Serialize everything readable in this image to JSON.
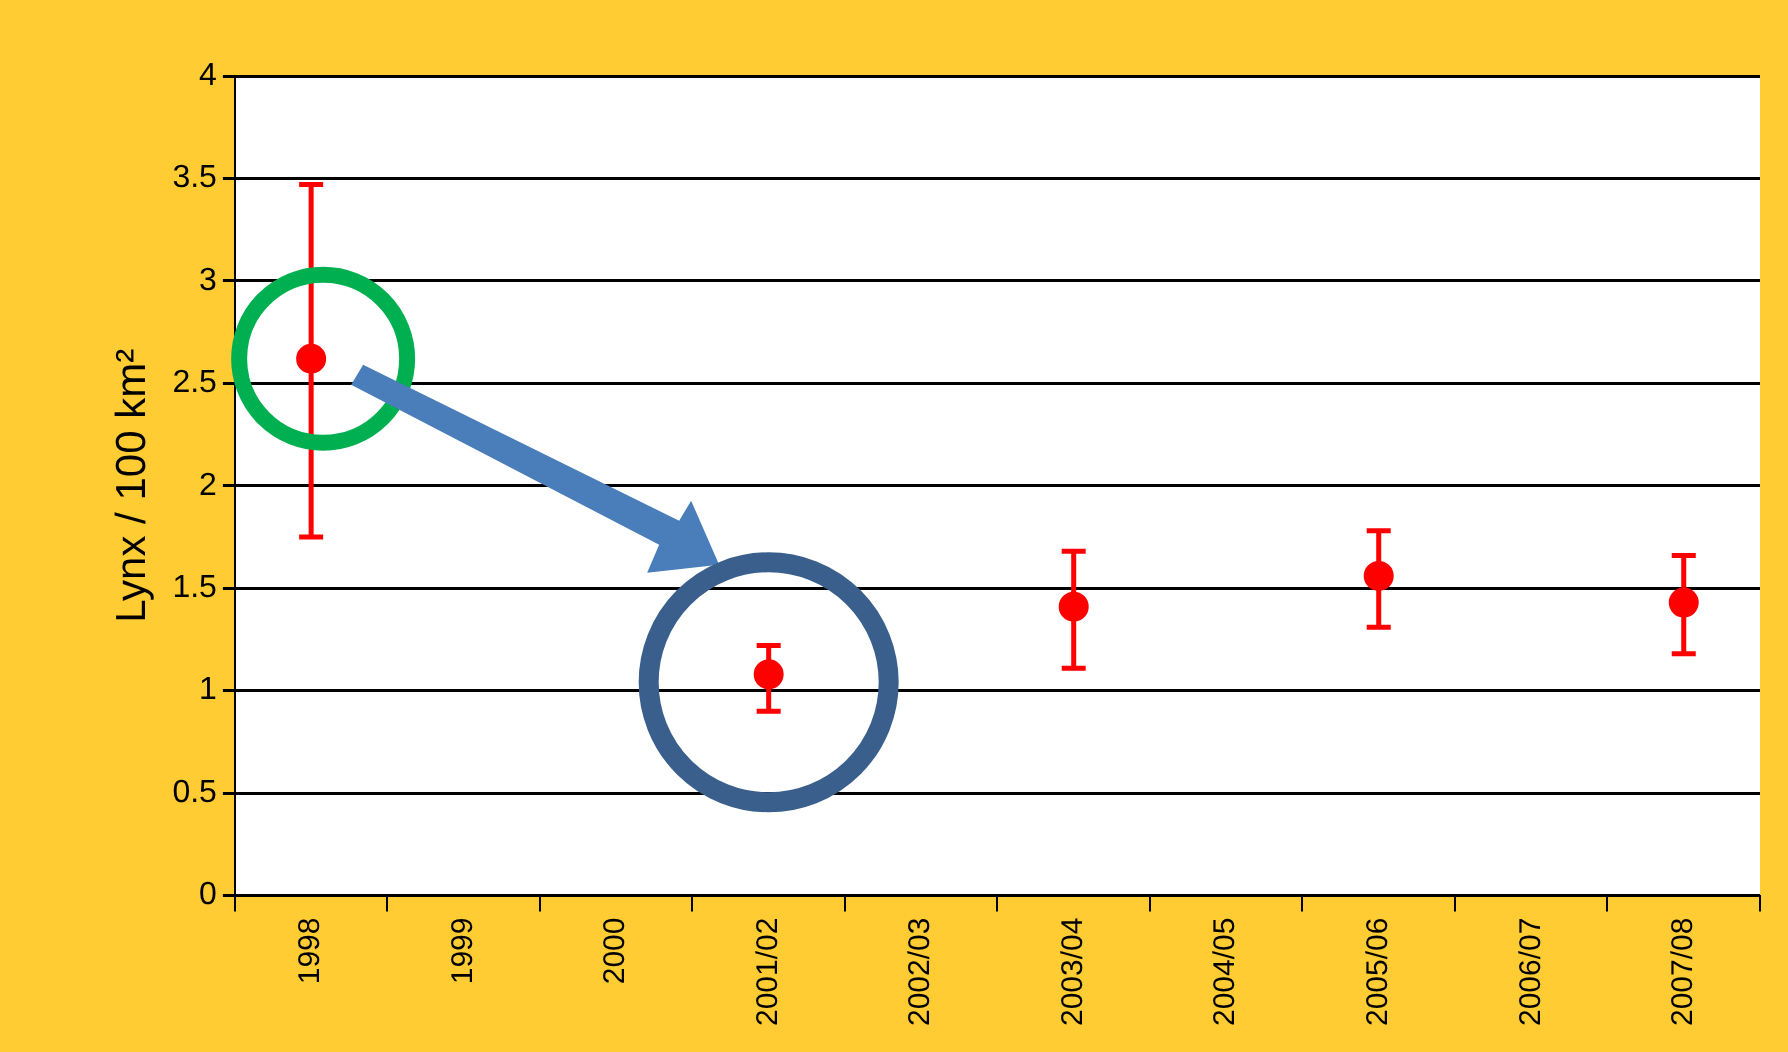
{
  "chart_data": {
    "type": "scatter",
    "ylabel": "Lynx / 100 km²",
    "categories": [
      "1998",
      "1999",
      "2000",
      "2001/02",
      "2002/03",
      "2003/04",
      "2004/05",
      "2005/06",
      "2006/07",
      "2007/08"
    ],
    "series": [
      {
        "color": "#ff0000",
        "values": [
          2.62,
          null,
          null,
          1.08,
          null,
          1.41,
          null,
          1.56,
          null,
          1.43
        ],
        "errors": [
          [
            1.75,
            3.47
          ],
          null,
          null,
          [
            0.9,
            1.22
          ],
          null,
          [
            1.11,
            1.68
          ],
          null,
          [
            1.31,
            1.78
          ],
          null,
          [
            1.18,
            1.66
          ]
        ]
      }
    ],
    "ylim": [
      0,
      4
    ],
    "yticks": [
      0,
      0.5,
      1,
      1.5,
      2,
      2.5,
      3,
      3.5,
      4
    ],
    "grid": "y",
    "legend": false,
    "marker": "circle"
  }
}
